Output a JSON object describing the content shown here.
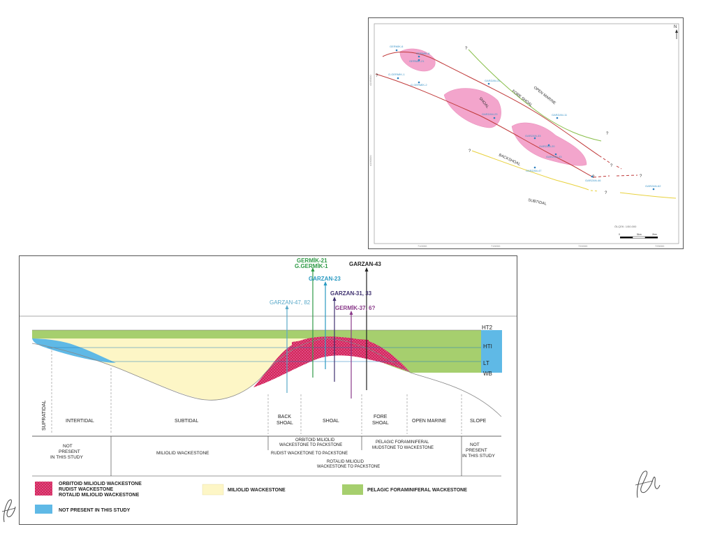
{
  "map": {
    "north": "N",
    "wells": [
      {
        "name": "GERMİK-6"
      },
      {
        "name": "GERMİK-8"
      },
      {
        "name": "GERMİK-21"
      },
      {
        "name": "G.GERMİK-1"
      },
      {
        "name": "G.GERMİK-2"
      },
      {
        "name": "GARZAN-31"
      },
      {
        "name": "GARZAN-23"
      },
      {
        "name": "GARZAN-11"
      },
      {
        "name": "GARZAN-33"
      },
      {
        "name": "GARZAN-20"
      },
      {
        "name": "GARZAN-43"
      },
      {
        "name": "GARZAN-47"
      },
      {
        "name": "GARZAN-46"
      },
      {
        "name": "GARZAN-62"
      }
    ],
    "facies_labels": {
      "open_marine": "OPEN MARINE",
      "fore_shoal": "FORE SHOAL",
      "shoal": "SHOAL",
      "backshoal": "BACKSHOAL",
      "subtidal": "SUBTIDAL"
    },
    "question_mark": "?",
    "scale_caption": "ÖLÇEK: 1/50.000",
    "scale_ticks": [
      "0",
      "5km",
      "2km"
    ],
    "x_ticks": [
      "710000",
      "715000",
      "720000",
      "725000"
    ],
    "y_ticks": [
      "4195000",
      "4190000"
    ]
  },
  "section": {
    "wells": [
      {
        "name": "GERMİK-21",
        "color": "#2e9a46"
      },
      {
        "name": "G.GERMİK-1",
        "color": "#2e9a46"
      },
      {
        "name": "GARZAN-43",
        "color": "#222222"
      },
      {
        "name": "GARZAN-23",
        "color": "#2a9ac2"
      },
      {
        "name": "GARZAN-31, 33",
        "color": "#3f3170"
      },
      {
        "name": "GARZAN-47, 82",
        "color": "#5aa9c9"
      },
      {
        "name": "GERMİK-37, 6?",
        "color": "#8a3a8a"
      }
    ],
    "horizons": [
      "HT2",
      "HTI",
      "LT",
      "WB"
    ],
    "zones": [
      "SUPRATIDAL",
      "INTERTIDAL",
      "SUBTIDAL",
      "BACK SHOAL",
      "SHOAL",
      "FORE SHOAL",
      "OPEN MARINE",
      "SLOPE"
    ],
    "facies": {
      "not_present": "NOT PRESENT IN THIS STUDY",
      "miliolid": "MILIOLID WACKESTONE",
      "orbitoid": "ORBITOID MILIOLID WACKESTONE TO PACKSTONE",
      "rudist": "RUDIST WACKETONE TO PACKSTONE",
      "rotalid": "ROTALID MILIOLID WACKESTONE TO PACKSTONE",
      "pelagic": "PELAGIC FORAMINIFERAL MUDSTONE TO WACKESTONE",
      "not_present_right": "NOT PRESENT IN THIS STUDY"
    },
    "legend": {
      "red_lines": [
        "ORBITOID MILIOLID WACKESTONE",
        "RUDIST WACKESTONE",
        "ROTALID MILIOLID WACKESTONE"
      ],
      "blue": "NOT PRESENT IN THIS STUDY",
      "yellow": "MILIOLID WACKESTONE",
      "green": "PELAGIC FORAMINIFERAL WACKESTONE"
    },
    "colors": {
      "green": "#a6cf6e",
      "yellow": "#fdf6c6",
      "blue": "#5fb9e6",
      "red": "#d3245a",
      "pink": "#f08cc3"
    }
  }
}
